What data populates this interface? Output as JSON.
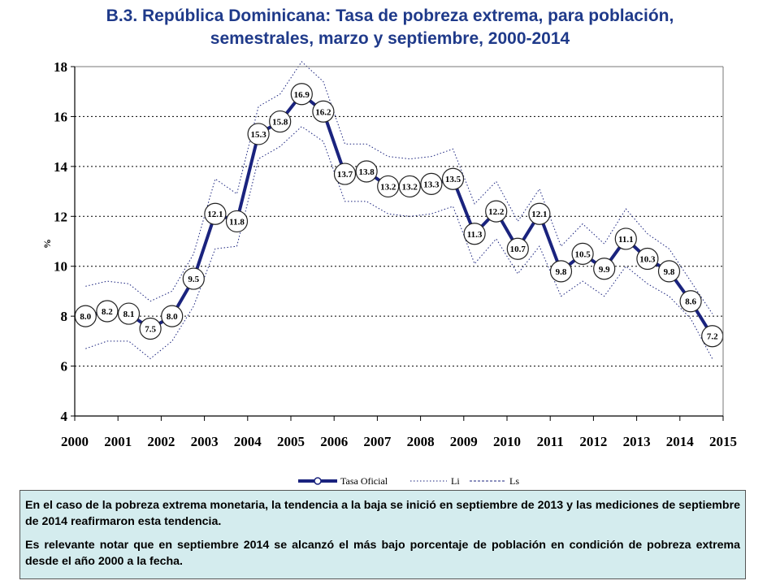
{
  "header": {
    "title_line1": "B.3. República Dominicana: Tasa de pobreza extrema, para población,",
    "title_line2": "semestrales, marzo y septiembre, 2000-2014"
  },
  "chart_data": {
    "type": "line",
    "ylabel": "%",
    "xlabel": "",
    "ylim": [
      4,
      18
    ],
    "yticks": [
      "4",
      "6",
      "8",
      "10",
      "12",
      "14",
      "16",
      "18"
    ],
    "xlim": [
      2000,
      2015
    ],
    "xticks": [
      "2000",
      "2001",
      "2002",
      "2003",
      "2004",
      "2005",
      "2006",
      "2007",
      "2008",
      "2009",
      "2010",
      "2011",
      "2012",
      "2013",
      "2014",
      "2015"
    ],
    "grid": "horizontal dotted",
    "legend_position": "bottom",
    "colors": {
      "main": "#1a237e",
      "bounds": "#1a237e"
    },
    "series": [
      {
        "name": "Tasa Oficial",
        "x": [
          2000.25,
          2000.75,
          2001.25,
          2001.75,
          2002.25,
          2002.75,
          2003.25,
          2003.75,
          2004.25,
          2004.75,
          2005.25,
          2005.75,
          2006.25,
          2006.75,
          2007.25,
          2007.75,
          2008.25,
          2008.75,
          2009.25,
          2009.75,
          2010.25,
          2010.75,
          2011.25,
          2011.75,
          2012.25,
          2012.75,
          2013.25,
          2013.75,
          2014.25,
          2014.75
        ],
        "values": [
          8.0,
          8.2,
          8.1,
          7.5,
          8.0,
          9.5,
          12.1,
          11.8,
          15.3,
          15.8,
          16.9,
          16.2,
          13.7,
          13.8,
          13.2,
          13.2,
          13.3,
          13.5,
          11.3,
          12.2,
          10.7,
          12.1,
          9.8,
          10.5,
          9.9,
          11.1,
          10.3,
          9.8,
          8.6,
          7.2
        ],
        "labels": [
          "8.0",
          "8.2",
          "8.1",
          "7.5",
          "8.0",
          "9.5",
          "12.1",
          "11.8",
          "15.3",
          "15.8",
          "16.9",
          "16.2",
          "13.7",
          "13.8",
          "13.2",
          "13.2",
          "13.3",
          "13.5",
          "11.3",
          "12.2",
          "10.7",
          "12.1",
          "9.8",
          "10.5",
          "9.9",
          "11.1",
          "10.3",
          "9.8",
          "8.6",
          "7.2"
        ]
      },
      {
        "name": "Li",
        "values": [
          6.7,
          7.0,
          7.0,
          6.3,
          7.0,
          8.4,
          10.7,
          10.8,
          14.3,
          14.8,
          15.6,
          15.0,
          12.6,
          12.6,
          12.1,
          12.0,
          12.1,
          12.4,
          10.1,
          11.1,
          9.7,
          10.8,
          8.8,
          9.4,
          8.8,
          10.0,
          9.3,
          8.8,
          7.9,
          6.3
        ]
      },
      {
        "name": "Ls",
        "values": [
          9.2,
          9.4,
          9.3,
          8.6,
          9.0,
          10.5,
          13.5,
          12.9,
          16.4,
          16.9,
          18.2,
          17.4,
          14.9,
          14.9,
          14.4,
          14.3,
          14.4,
          14.7,
          12.5,
          13.4,
          11.8,
          13.1,
          10.8,
          11.7,
          10.9,
          12.3,
          11.3,
          10.7,
          9.4,
          8.1
        ]
      }
    ]
  },
  "note": {
    "p1": "En el caso de la pobreza extrema monetaria, la tendencia a la baja se inició en septiembre de 2013 y las mediciones de septiembre de 2014 reafirmaron esta tendencia.",
    "p2": "Es relevante notar  que en septiembre 2014 se alcanzó el más bajo porcentaje de población en condición de pobreza extrema desde el año 2000 a la fecha."
  }
}
